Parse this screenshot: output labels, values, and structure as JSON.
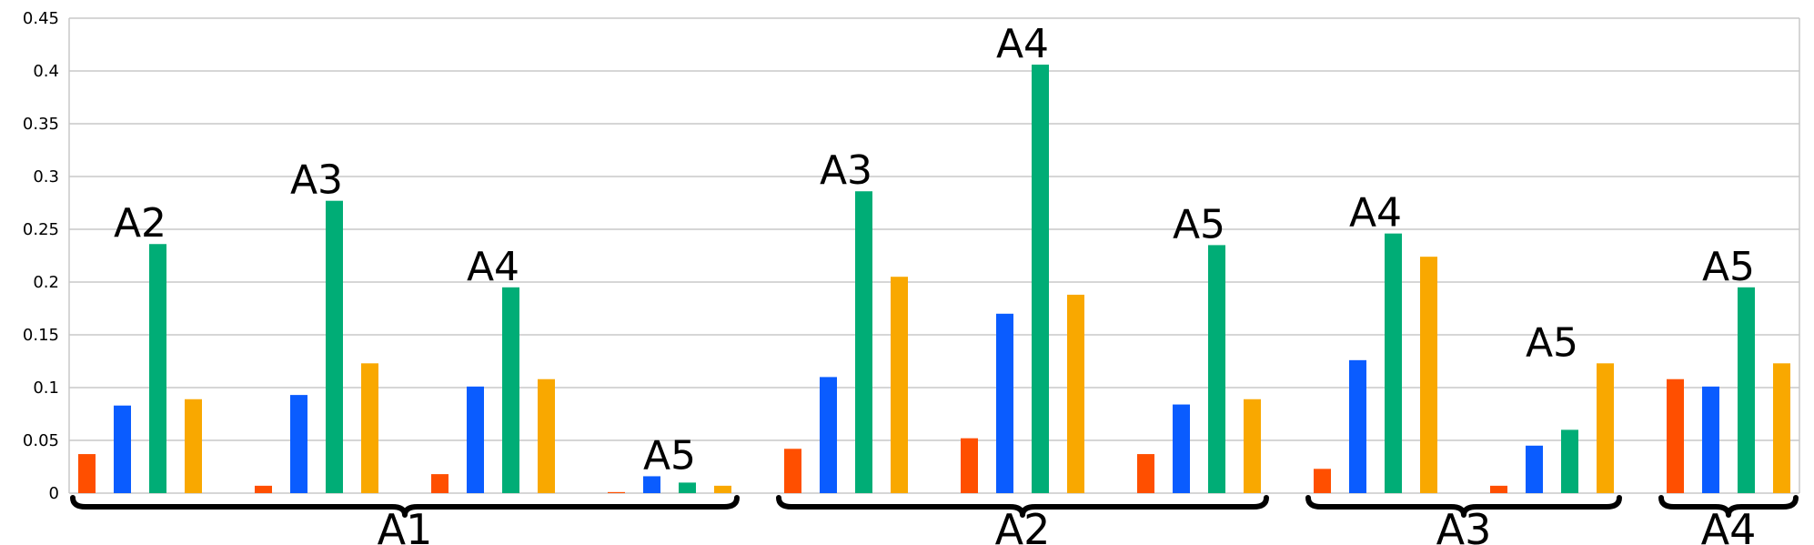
{
  "chart_data": {
    "type": "bar",
    "title": "",
    "xlabel": "",
    "ylabel": "",
    "ylim": [
      0,
      0.45
    ],
    "yticks": [
      0,
      0.05,
      0.1,
      0.15,
      0.2,
      0.25,
      0.3,
      0.35,
      0.4,
      0.45
    ],
    "ytick_labels": [
      "0",
      "0.05",
      "0.1",
      "0.15",
      "0.2",
      "0.25",
      "0.3",
      "0.35",
      "0.4",
      "0.45"
    ],
    "grid": true,
    "legend": "none",
    "series_colors": [
      "#ff4f00",
      "#0a5cff",
      "#00ad76",
      "#f9a800"
    ],
    "groups": [
      {
        "label": "A1",
        "subgroups": [
          {
            "label": "A2",
            "values": [
              0.037,
              0.083,
              0.236,
              0.089
            ]
          },
          {
            "label": "A3",
            "values": [
              0.007,
              0.093,
              0.277,
              0.123
            ]
          },
          {
            "label": "A4",
            "values": [
              0.018,
              0.101,
              0.195,
              0.108
            ]
          },
          {
            "label": "A5",
            "values": [
              0.001,
              0.016,
              0.01,
              0.007
            ]
          }
        ]
      },
      {
        "label": "A2",
        "subgroups": [
          {
            "label": "A3",
            "values": [
              0.042,
              0.11,
              0.286,
              0.205
            ]
          },
          {
            "label": "A4",
            "values": [
              0.052,
              0.17,
              0.406,
              0.188
            ]
          },
          {
            "label": "A5",
            "values": [
              0.037,
              0.084,
              0.235,
              0.089
            ]
          }
        ]
      },
      {
        "label": "A3",
        "subgroups": [
          {
            "label": "A4",
            "values": [
              0.023,
              0.126,
              0.246,
              0.224
            ]
          },
          {
            "label": "A5",
            "values": [
              0.007,
              0.045,
              0.06,
              0.123
            ]
          }
        ]
      },
      {
        "label": "A4",
        "subgroups": [
          {
            "label": "A5",
            "values": [
              0.108,
              0.101,
              0.195,
              0.123
            ]
          }
        ]
      }
    ]
  }
}
